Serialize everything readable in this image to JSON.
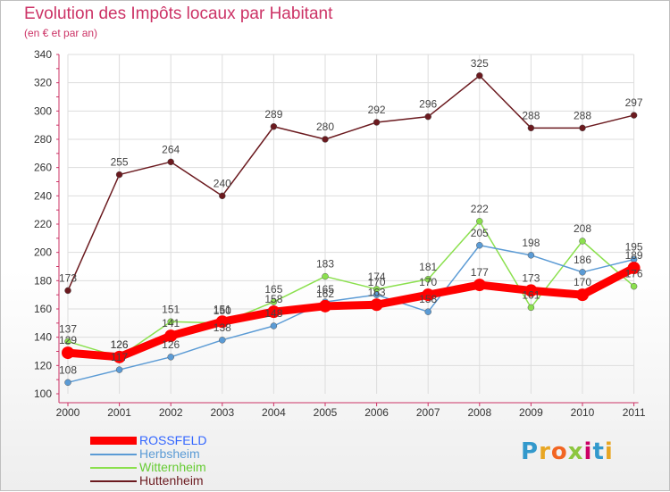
{
  "header": {
    "title": "Evolution des Impôts locaux par Habitant",
    "subtitle": "(en € et par an)"
  },
  "logo": {
    "text": "Proxiti",
    "letter_colors": [
      "#3399cc",
      "#e8a623",
      "#f26522",
      "#8dc63f",
      "#cc0066",
      "#3399cc",
      "#e8a623"
    ]
  },
  "colors": {
    "title": "#cc3366",
    "axis": "#cc3366",
    "grid": "#dddddd",
    "label_text": "#333333"
  },
  "chart_data": {
    "type": "line",
    "title": "Evolution des Impôts locaux par Habitant",
    "subtitle": "(en € et par an)",
    "xlabel": "",
    "ylabel": "",
    "x": [
      "2000",
      "2001",
      "2002",
      "2003",
      "2004",
      "2005",
      "2006",
      "2007",
      "2008",
      "2009",
      "2010",
      "2011"
    ],
    "ylim": [
      100,
      340
    ],
    "yticks": [
      100,
      120,
      140,
      160,
      180,
      200,
      220,
      240,
      260,
      280,
      300,
      320,
      340
    ],
    "grid": true,
    "legend_position": "bottom-left",
    "series": [
      {
        "name": "ROSSFELD",
        "color": "#ff0000",
        "legend_text_color": "#3366ff",
        "line_width": 9,
        "marker_radius": 7,
        "values": [
          129,
          126,
          141,
          151,
          158,
          162,
          163,
          170,
          177,
          173,
          170,
          189
        ]
      },
      {
        "name": "Herbsheim",
        "color": "#5b9bd5",
        "legend_text_color": "#5b9bd5",
        "line_width": 1.5,
        "marker_radius": 3.5,
        "values": [
          108,
          117,
          126,
          138,
          148,
          165,
          170,
          158,
          205,
          198,
          186,
          195
        ]
      },
      {
        "name": "Witternheim",
        "color": "#8be04e",
        "legend_text_color": "#66cc33",
        "line_width": 1.5,
        "marker_radius": 3.5,
        "values": [
          137,
          126,
          151,
          150,
          165,
          183,
          174,
          181,
          222,
          161,
          208,
          176
        ]
      },
      {
        "name": "Huttenheim",
        "color": "#6b1a1f",
        "legend_text_color": "#6b1a1f",
        "line_width": 1.5,
        "marker_radius": 3.5,
        "values": [
          173,
          255,
          264,
          240,
          289,
          280,
          292,
          296,
          325,
          288,
          288,
          297
        ]
      }
    ]
  }
}
